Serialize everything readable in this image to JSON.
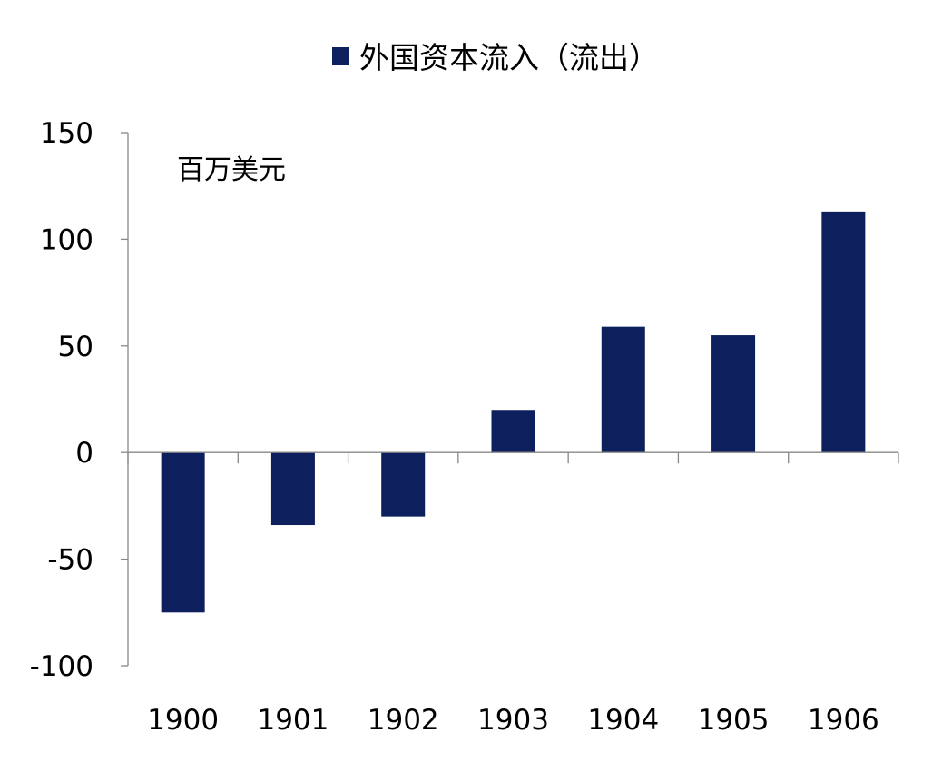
{
  "chart_data": {
    "type": "bar",
    "title": "",
    "legend": {
      "entries": [
        "外国资本流入（流出）"
      ],
      "placement": "top"
    },
    "unit_label": "百万美元",
    "xlabel": "",
    "ylabel": "",
    "categories": [
      "1900",
      "1901",
      "1902",
      "1903",
      "1904",
      "1905",
      "1906"
    ],
    "series": [
      {
        "name": "外国资本流入（流出）",
        "values": [
          -75,
          -34,
          -30,
          20,
          59,
          55,
          113
        ],
        "color": "#0d1f5c"
      }
    ],
    "ylim": [
      -100,
      150
    ],
    "yticks": [
      150,
      100,
      50,
      0,
      -50,
      -100
    ],
    "grid": false
  }
}
